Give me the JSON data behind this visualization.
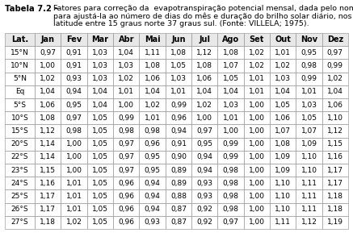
{
  "title_bold": "Tabela 7.2 –",
  "title_line1": "  Fatores para correção da  evapotranspiração potencial mensal, dada pelo nomograma Thornthwaite",
  "title_line2": "  para ajustá-la ao número de dias do mês e duração do brilho solar diário, nos vários meses do ano e",
  "title_line3": "  latitude entre 15 graus norte 37 graus sul. (Fonte: VILLELA; 1975).",
  "headers": [
    "Lat.",
    "Jan",
    "Fev",
    "Mar",
    "Abr",
    "Mai",
    "Jun",
    "Jul",
    "Ago",
    "Set",
    "Out",
    "Nov",
    "Dez"
  ],
  "rows": [
    [
      "15°N",
      "0,97",
      "0,91",
      "1,03",
      "1,04",
      "1,11",
      "1,08",
      "1,12",
      "1,08",
      "1,02",
      "1,01",
      "0,95",
      "0,97"
    ],
    [
      "10°N",
      "1,00",
      "0,91",
      "1,03",
      "1,03",
      "1,08",
      "1,05",
      "1,08",
      "1,07",
      "1,02",
      "1,02",
      "0,98",
      "0,99"
    ],
    [
      "5°N",
      "1,02",
      "0,93",
      "1,03",
      "1,02",
      "1,06",
      "1,03",
      "1,06",
      "1,05",
      "1,01",
      "1,03",
      "0,99",
      "1,02"
    ],
    [
      "Eq",
      "1,04",
      "0,94",
      "1,04",
      "1,01",
      "1,04",
      "1,01",
      "1,04",
      "1,04",
      "1,01",
      "1,04",
      "1,01",
      "1,04"
    ],
    [
      "5°S",
      "1,06",
      "0,95",
      "1,04",
      "1,00",
      "1,02",
      "0,99",
      "1,02",
      "1,03",
      "1,00",
      "1,05",
      "1,03",
      "1,06"
    ],
    [
      "10°S",
      "1,08",
      "0,97",
      "1,05",
      "0,99",
      "1,01",
      "0,96",
      "1,00",
      "1,01",
      "1,00",
      "1,06",
      "1,05",
      "1,10"
    ],
    [
      "15°S",
      "1,12",
      "0,98",
      "1,05",
      "0,98",
      "0,98",
      "0,94",
      "0,97",
      "1,00",
      "1,00",
      "1,07",
      "1,07",
      "1,12"
    ],
    [
      "20°S",
      "1,14",
      "1,00",
      "1,05",
      "0,97",
      "0,96",
      "0,91",
      "0,95",
      "0,99",
      "1,00",
      "1,08",
      "1,09",
      "1,15"
    ],
    [
      "22°S",
      "1,14",
      "1,00",
      "1,05",
      "0,97",
      "0,95",
      "0,90",
      "0,94",
      "0,99",
      "1,00",
      "1,09",
      "1,10",
      "1,16"
    ],
    [
      "23°S",
      "1,15",
      "1,00",
      "1,05",
      "0,97",
      "0,95",
      "0,89",
      "0,94",
      "0,98",
      "1,00",
      "1,09",
      "1,10",
      "1,17"
    ],
    [
      "24°S",
      "1,16",
      "1,01",
      "1,05",
      "0,96",
      "0,94",
      "0,89",
      "0,93",
      "0,98",
      "1,00",
      "1,10",
      "1,11",
      "1,17"
    ],
    [
      "25°S",
      "1,17",
      "1,01",
      "1,05",
      "0,96",
      "0,94",
      "0,88",
      "0,93",
      "0,98",
      "1,00",
      "1,10",
      "1,11",
      "1,18"
    ],
    [
      "26°S",
      "1,17",
      "1,01",
      "1,05",
      "0,96",
      "0,94",
      "0,87",
      "0,92",
      "0,98",
      "1,00",
      "1,10",
      "1,11",
      "1,18"
    ],
    [
      "27°S",
      "1,18",
      "1,02",
      "1,05",
      "0,96",
      "0,93",
      "0,87",
      "0,92",
      "0,97",
      "1,00",
      "1,11",
      "1,12",
      "1,19"
    ]
  ],
  "bg_color": "#ffffff",
  "header_bg": "#e8e8e8",
  "row_bg": "#ffffff",
  "border_color": "#888888",
  "text_color": "#000000",
  "title_fontsize": 6.8,
  "cell_fontsize": 6.5,
  "header_fontsize": 7.0,
  "title_bold_fontsize": 7.2
}
